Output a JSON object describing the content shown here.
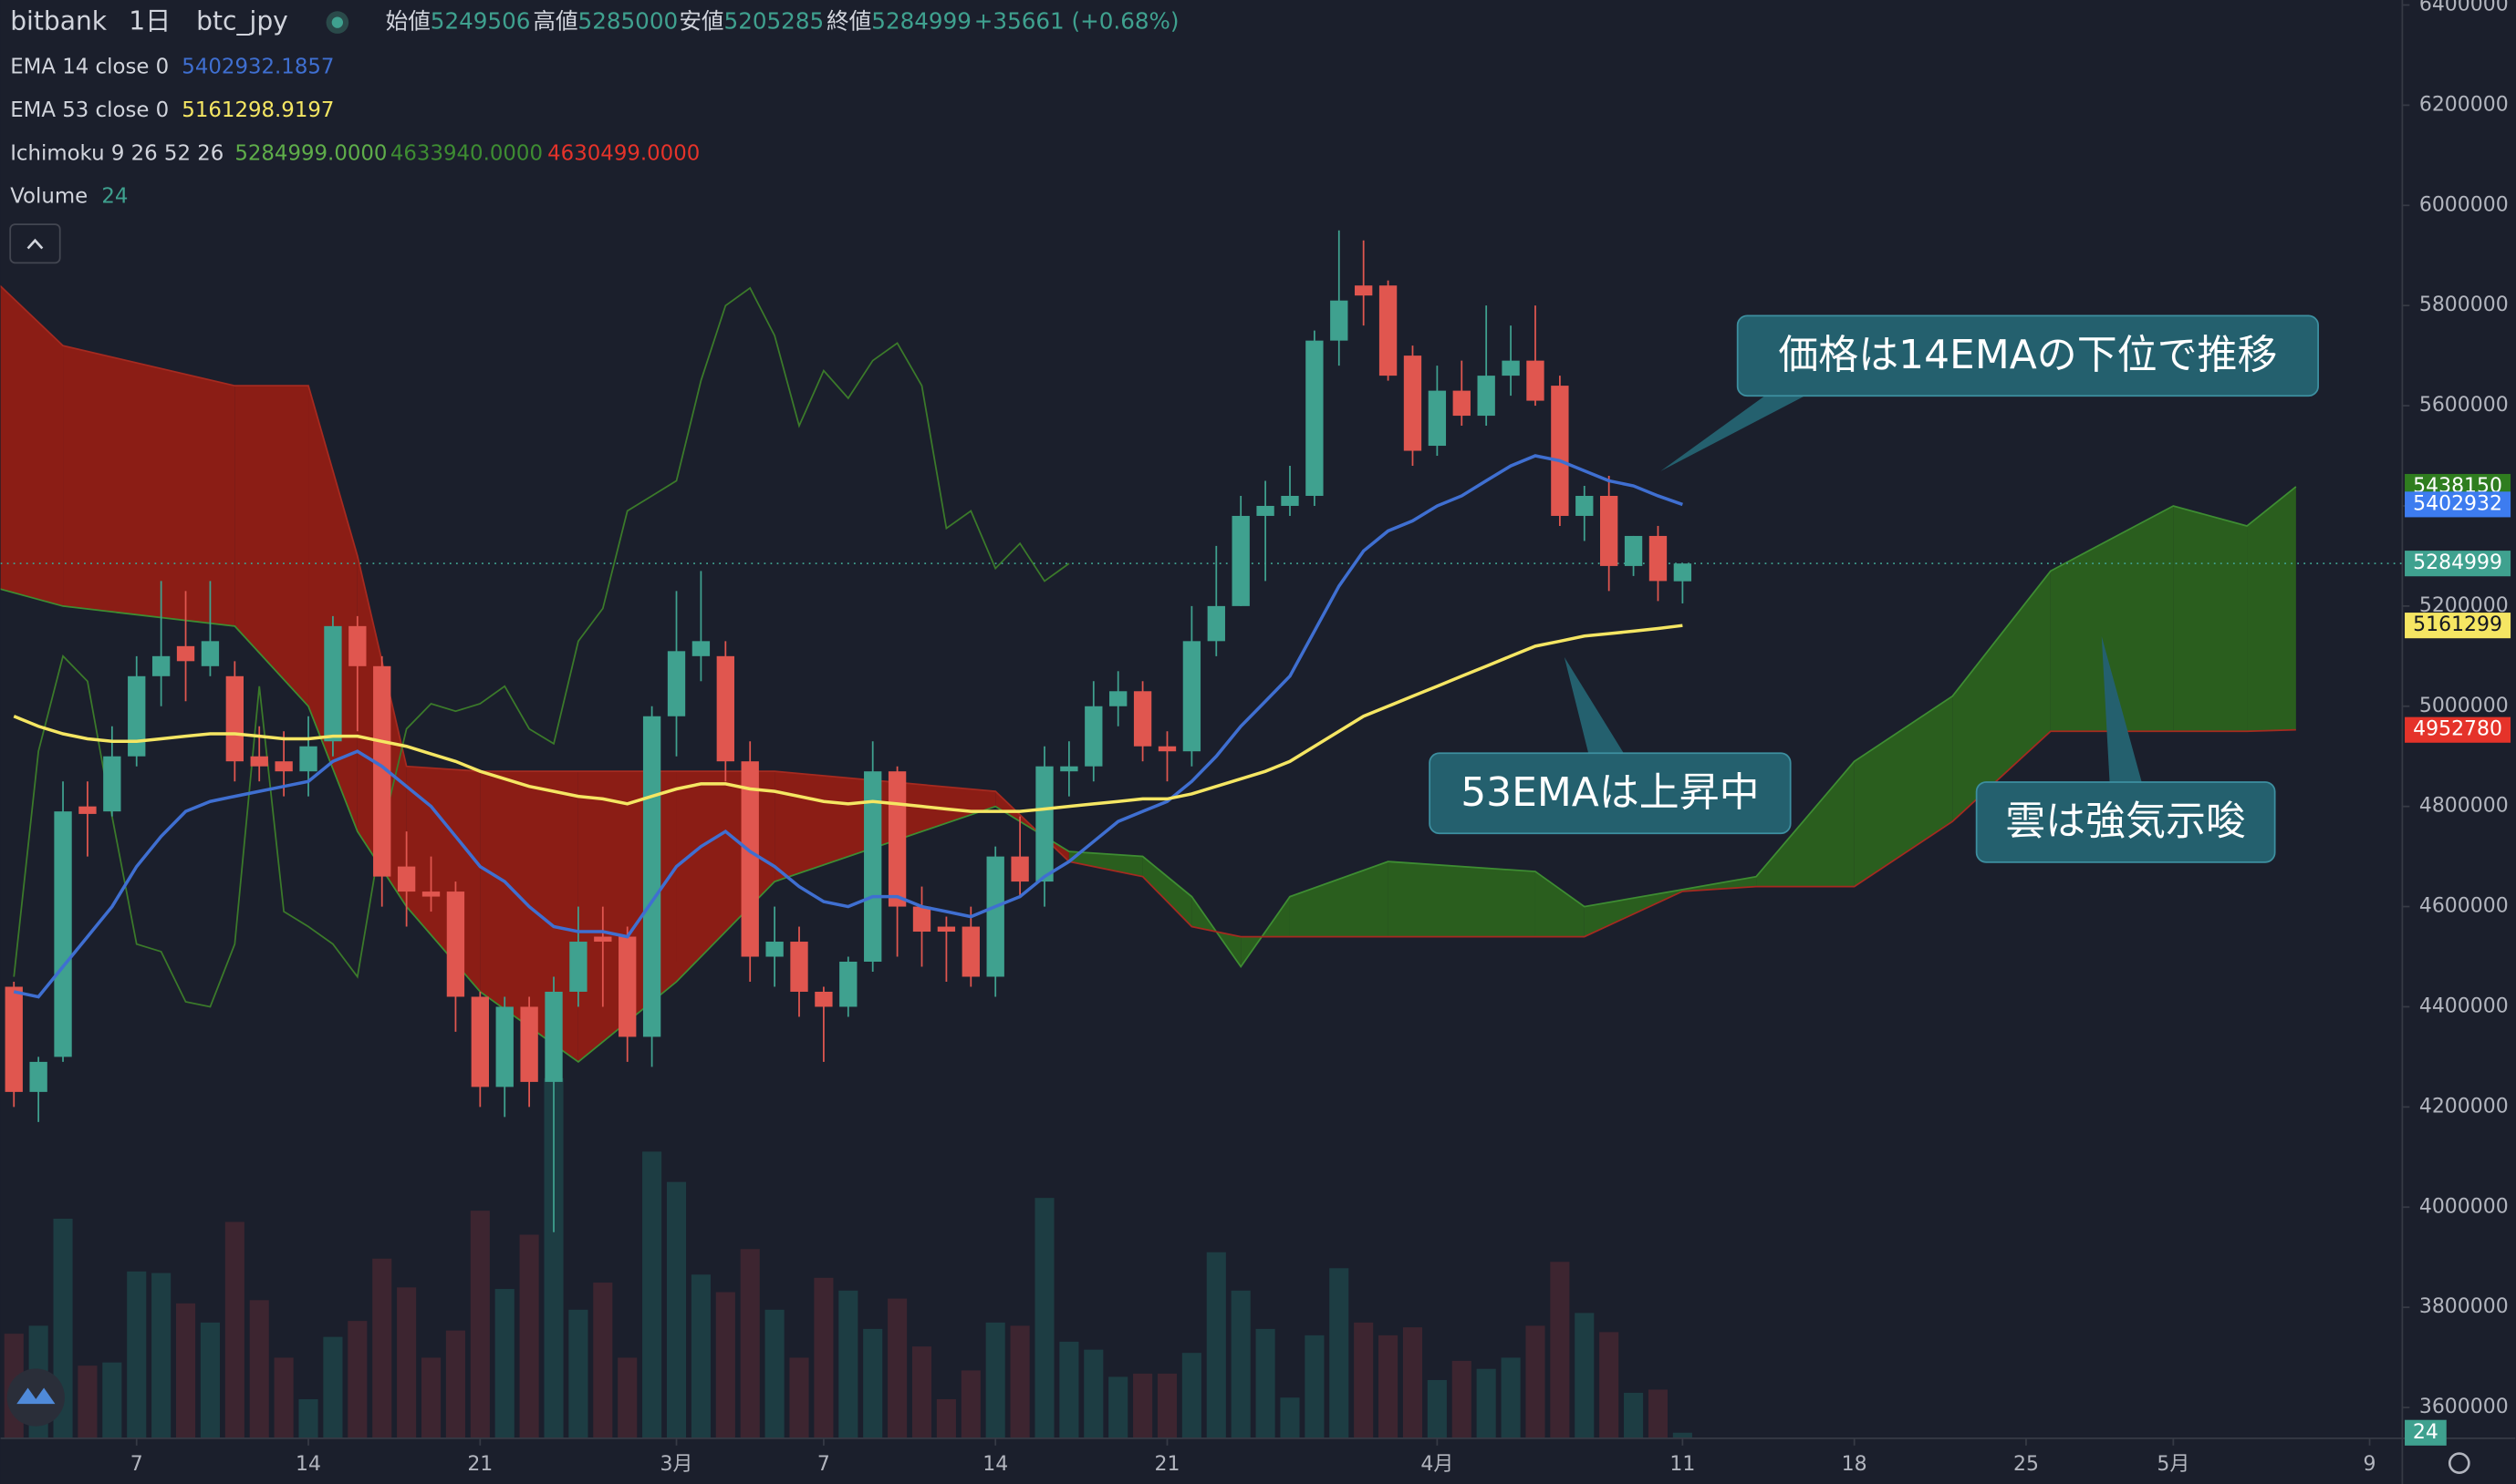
{
  "chart_data": {
    "type": "candlestick",
    "exchange": "bitbank",
    "interval": "1日",
    "symbol": "btc_jpy",
    "ohlc_labels": [
      "始値",
      "高値",
      "安値",
      "終値"
    ],
    "change": "+35661 (+0.68%)",
    "up_color": "#3fa18f",
    "down_color": "#e0564f",
    "x": [
      "02-02",
      "02-03",
      "02-04",
      "02-05",
      "02-06",
      "02-07",
      "02-08",
      "02-09",
      "02-10",
      "02-11",
      "02-12",
      "02-13",
      "02-14",
      "02-15",
      "02-16",
      "02-17",
      "02-18",
      "02-19",
      "02-20",
      "02-21",
      "02-22",
      "02-23",
      "02-24",
      "02-25",
      "02-26",
      "02-27",
      "02-28",
      "03-01",
      "03-02",
      "03-03",
      "03-04",
      "03-05",
      "03-06",
      "03-07",
      "03-08",
      "03-09",
      "03-10",
      "03-11",
      "03-12",
      "03-13",
      "03-14",
      "03-15",
      "03-16",
      "03-17",
      "03-18",
      "03-19",
      "03-20",
      "03-21",
      "03-22",
      "03-23",
      "03-24",
      "03-25",
      "03-26",
      "03-27",
      "03-28",
      "03-29",
      "03-30",
      "03-31",
      "04-01",
      "04-02",
      "04-03",
      "04-04",
      "04-05",
      "04-06",
      "04-07",
      "04-08",
      "04-09",
      "04-10",
      "04-11"
    ],
    "open": [
      4440000,
      4230000,
      4300000,
      4800000,
      4790000,
      4900000,
      5060000,
      5120000,
      5080000,
      5060000,
      4900000,
      4890000,
      4870000,
      4930000,
      5160000,
      5080000,
      4680000,
      4630000,
      4630000,
      4420000,
      4240000,
      4400000,
      4250000,
      4430000,
      4540000,
      4540000,
      4340000,
      4980000,
      5100000,
      5100000,
      4890000,
      4500000,
      4530000,
      4430000,
      4400000,
      4490000,
      4870000,
      4600000,
      4560000,
      4560000,
      4460000,
      4700000,
      4650000,
      4870000,
      4880000,
      5000000,
      5030000,
      4920000,
      4910000,
      5130000,
      5200000,
      5380000,
      5400000,
      5420000,
      5730000,
      5840000,
      5840000,
      5700000,
      5520000,
      5630000,
      5580000,
      5660000,
      5690000,
      5640000,
      5380000,
      5420000,
      5280000,
      5340000,
      5249506
    ],
    "high": [
      4450000,
      4300000,
      4850000,
      4850000,
      4960000,
      5100000,
      5250000,
      5230000,
      5250000,
      5090000,
      4960000,
      4950000,
      4980000,
      5180000,
      5180000,
      5100000,
      4750000,
      4700000,
      4650000,
      4430000,
      4420000,
      4420000,
      4460000,
      4600000,
      4600000,
      4560000,
      5000000,
      5230000,
      5270000,
      5130000,
      4930000,
      4600000,
      4560000,
      4440000,
      4500000,
      4930000,
      4880000,
      4640000,
      4580000,
      4600000,
      4720000,
      4780000,
      4920000,
      4930000,
      5050000,
      5070000,
      5050000,
      4950000,
      5200000,
      5320000,
      5420000,
      5450000,
      5480000,
      5750000,
      5950000,
      5930000,
      5850000,
      5720000,
      5680000,
      5690000,
      5800000,
      5760000,
      5800000,
      5660000,
      5440000,
      5460000,
      5340000,
      5360000,
      5285000
    ],
    "low": [
      4200000,
      4170000,
      4290000,
      4700000,
      4780000,
      4880000,
      5000000,
      5010000,
      5060000,
      4850000,
      4850000,
      4820000,
      4820000,
      4900000,
      4950000,
      4600000,
      4560000,
      4590000,
      4350000,
      4200000,
      4180000,
      4200000,
      3950000,
      4400000,
      4400000,
      4290000,
      4280000,
      4900000,
      5050000,
      4850000,
      4450000,
      4440000,
      4380000,
      4290000,
      4380000,
      4470000,
      4500000,
      4480000,
      4450000,
      4440000,
      4420000,
      4620000,
      4600000,
      4820000,
      4850000,
      4960000,
      4890000,
      4850000,
      4880000,
      5100000,
      5200000,
      5250000,
      5380000,
      5400000,
      5680000,
      5760000,
      5650000,
      5480000,
      5500000,
      5560000,
      5560000,
      5620000,
      5600000,
      5360000,
      5330000,
      5230000,
      5260000,
      5210000,
      5205285
    ],
    "close": [
      4230000,
      4290000,
      4790000,
      4785000,
      4900000,
      5060000,
      5100000,
      5090000,
      5130000,
      4890000,
      4880000,
      4870000,
      4920000,
      5160000,
      5080000,
      4660000,
      4630000,
      4620000,
      4420000,
      4240000,
      4400000,
      4250000,
      4430000,
      4530000,
      4530000,
      4340000,
      4980000,
      5110000,
      5130000,
      4890000,
      4500000,
      4530000,
      4430000,
      4400000,
      4490000,
      4870000,
      4600000,
      4550000,
      4550000,
      4460000,
      4700000,
      4650000,
      4880000,
      4880000,
      5000000,
      5030000,
      4920000,
      4910000,
      5130000,
      5200000,
      5380000,
      5400000,
      5420000,
      5730000,
      5810000,
      5820000,
      5660000,
      5510000,
      5630000,
      5580000,
      5660000,
      5690000,
      5610000,
      5380000,
      5420000,
      5280000,
      5340000,
      5250000,
      5284999
    ],
    "ylim": [
      3540000,
      6410000
    ],
    "yticks": [
      3600000,
      3800000,
      4000000,
      4200000,
      4400000,
      4600000,
      4800000,
      5000000,
      5200000,
      5400000,
      5600000,
      5800000,
      6000000,
      6200000,
      6400000
    ],
    "xlim": [
      "02-01",
      "05-10"
    ],
    "xticks": [
      {
        "value": "02-07",
        "label": "7"
      },
      {
        "value": "02-14",
        "label": "14"
      },
      {
        "value": "02-21",
        "label": "21"
      },
      {
        "value": "03-01",
        "label": "3月"
      },
      {
        "value": "03-07",
        "label": "7"
      },
      {
        "value": "03-14",
        "label": "14"
      },
      {
        "value": "03-21",
        "label": "21"
      },
      {
        "value": "04-01",
        "label": "4月"
      },
      {
        "value": "04-11",
        "label": "11"
      },
      {
        "value": "04-18",
        "label": "18"
      },
      {
        "value": "04-25",
        "label": "25"
      },
      {
        "value": "05-01",
        "label": "5月"
      },
      {
        "value": "05-09",
        "label": "9"
      }
    ],
    "series": [
      {
        "name": "EMA 14 close 0",
        "color": "#3f6fd1",
        "values": [
          4430000,
          4420000,
          4480000,
          4540000,
          4600000,
          4680000,
          4740000,
          4790000,
          4810000,
          4820000,
          4830000,
          4840000,
          4850000,
          4890000,
          4910000,
          4880000,
          4840000,
          4800000,
          4740000,
          4680000,
          4650000,
          4600000,
          4560000,
          4550000,
          4550000,
          4540000,
          4610000,
          4680000,
          4720000,
          4750000,
          4710000,
          4680000,
          4640000,
          4610000,
          4600000,
          4620000,
          4620000,
          4600000,
          4590000,
          4580000,
          4600000,
          4620000,
          4660000,
          4690000,
          4730000,
          4770000,
          4790000,
          4810000,
          4850000,
          4900000,
          4960000,
          5010000,
          5060000,
          5150000,
          5240000,
          5310000,
          5350000,
          5370000,
          5400000,
          5420000,
          5450000,
          5480000,
          5500000,
          5490000,
          5470000,
          5450000,
          5440000,
          5420000,
          5402932.1857
        ]
      },
      {
        "name": "EMA 53 close 0",
        "color": "#f5e663",
        "values": [
          4980000,
          4960000,
          4945000,
          4935000,
          4930000,
          4930000,
          4935000,
          4940000,
          4945000,
          4945000,
          4940000,
          4935000,
          4935000,
          4940000,
          4940000,
          4930000,
          4920000,
          4905000,
          4890000,
          4870000,
          4855000,
          4840000,
          4830000,
          4820000,
          4815000,
          4805000,
          4820000,
          4835000,
          4845000,
          4845000,
          4835000,
          4830000,
          4820000,
          4810000,
          4805000,
          4810000,
          4805000,
          4800000,
          4795000,
          4790000,
          4790000,
          4790000,
          4795000,
          4800000,
          4805000,
          4810000,
          4815000,
          4815000,
          4825000,
          4840000,
          4855000,
          4870000,
          4890000,
          4920000,
          4950000,
          4980000,
          5000000,
          5020000,
          5040000,
          5060000,
          5080000,
          5100000,
          5120000,
          5130000,
          5140000,
          5145000,
          5150000,
          5155000,
          5161298.9197
        ]
      }
    ],
    "ichimoku": {
      "name": "Ichimoku 9 26 52 26",
      "legend_values": [
        {
          "text": "5284999.0000",
          "color": "#5fae4a"
        },
        {
          "text": "4633940.0000",
          "color": "#3e8d32"
        },
        {
          "text": "4630499.0000",
          "color": "#e5332a"
        }
      ],
      "lagging": {
        "color": "#3b7a2a",
        "x": [
          "02-02",
          "02-03",
          "02-04",
          "02-05",
          "02-06",
          "02-07",
          "02-08",
          "02-09",
          "02-10",
          "02-11",
          "02-12",
          "02-13",
          "02-14",
          "02-15",
          "02-16",
          "02-17",
          "02-18",
          "02-19",
          "02-20",
          "02-21",
          "02-22",
          "02-23",
          "02-24",
          "02-25",
          "02-26",
          "02-27",
          "02-28",
          "03-01",
          "03-02",
          "03-03",
          "03-04",
          "03-05",
          "03-06",
          "03-07",
          "03-08",
          "03-09",
          "03-10",
          "03-11",
          "03-12",
          "03-13",
          "03-14",
          "03-15",
          "03-16",
          "03-17"
        ],
        "values": [
          4460000,
          4910000,
          5100000,
          5050000,
          4780000,
          4525000,
          4510000,
          4410000,
          4400000,
          4525000,
          5040000,
          4590000,
          4560000,
          4525000,
          4460000,
          4750000,
          4955000,
          5005000,
          4990000,
          5005000,
          5040000,
          4955000,
          4925000,
          5130000,
          5195000,
          5390000,
          5420000,
          5450000,
          5650000,
          5800000,
          5835000,
          5740000,
          5560000,
          5670000,
          5615000,
          5690000,
          5725000,
          5640000,
          5355000,
          5390000,
          5275000,
          5325000,
          5250000,
          5285000
        ]
      },
      "cloud": {
        "up_color": "#2a5e1e",
        "down_color": "#8b1d15",
        "x": [
          "02-01",
          "02-04",
          "02-11",
          "02-14",
          "02-16",
          "02-18",
          "02-21",
          "02-25",
          "03-01",
          "03-05",
          "03-14",
          "03-17",
          "03-20",
          "03-22",
          "03-24",
          "03-26",
          "03-30",
          "04-05",
          "04-07",
          "04-11",
          "04-14",
          "04-18",
          "04-22",
          "04-26",
          "05-01",
          "05-04",
          "05-06"
        ],
        "span_a": [
          5240000,
          5200000,
          5160000,
          5000000,
          4750000,
          4600000,
          4430000,
          4290000,
          4450000,
          4650000,
          4800000,
          4710000,
          4700000,
          4620000,
          4480000,
          4620000,
          4690000,
          4670000,
          4600000,
          4633940,
          4660000,
          4890000,
          5020000,
          5270000,
          5400000,
          5360000,
          5438150
        ],
        "span_b": [
          5860000,
          5720000,
          5640000,
          5640000,
          5300000,
          4880000,
          4870000,
          4870000,
          4870000,
          4870000,
          4830000,
          4690000,
          4660000,
          4560000,
          4540000,
          4540000,
          4540000,
          4540000,
          4540000,
          4630499,
          4640000,
          4640000,
          4770000,
          4950000,
          4950000,
          4950000,
          4952780
        ]
      }
    },
    "volume": {
      "name": "Volume",
      "up_color": "#1d3d43",
      "down_color": "#3d2530",
      "label_color": "#3fa18f",
      "ylim": [
        0,
        7200
      ],
      "values": [
        520,
        560,
        1096,
        360,
        376,
        832,
        824,
        672,
        576,
        1080,
        688,
        400,
        192,
        504,
        584,
        896,
        752,
        400,
        536,
        1136,
        744,
        1016,
        1800,
        640,
        776,
        400,
        1432,
        1280,
        816,
        728,
        944,
        640,
        400,
        800,
        736,
        544,
        696,
        456,
        192,
        336,
        576,
        560,
        1200,
        480,
        440,
        304,
        320,
        320,
        424,
        928,
        736,
        544,
        200,
        512,
        848,
        576,
        512,
        552,
        288,
        384,
        344,
        400,
        560,
        880,
        624,
        528,
        224,
        240,
        24
      ]
    },
    "price_tags": [
      {
        "value": 5438150,
        "color": "#2f7d1f",
        "text_color": "#ffffff"
      },
      {
        "value": 5402932,
        "color": "#3d7cf0",
        "text_color": "#ffffff"
      },
      {
        "value": 5284999,
        "color": "#3fa18f",
        "text_color": "#ffffff"
      },
      {
        "value": 5161299,
        "color": "#f5e663",
        "text_color": "#131722"
      },
      {
        "value": 4952780,
        "color": "#e5332a",
        "text_color": "#ffffff"
      }
    ],
    "annotations": [
      "価格は14EMAの下位で推移",
      "53EMAは上昇中",
      "雲は強気示唆"
    ]
  }
}
